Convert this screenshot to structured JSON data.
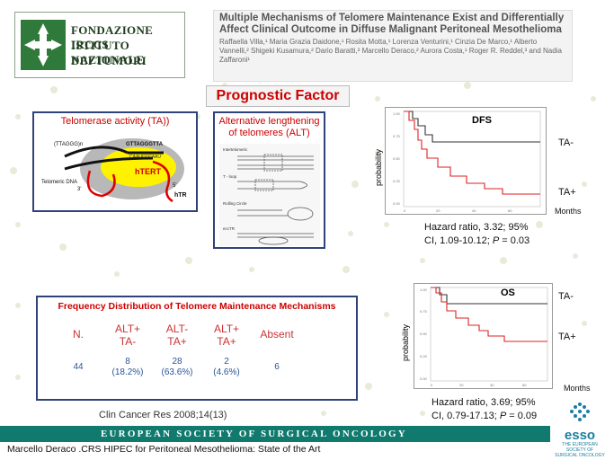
{
  "logo": {
    "line1": "FONDAZIONE IRCCS",
    "line2": "ISTITUTO NAZIONALE",
    "line3": "DEI TUMORI"
  },
  "article": {
    "title": "Multiple Mechanisms of Telomere Maintenance Exist and Differentially Affect Clinical Outcome in Diffuse Malignant Peritoneal Mesothelioma",
    "authors": "Raffaella Villa,¹ Maria Grazia Daidone,¹ Rosita Motta,¹ Lorenza Venturini,¹ Cinzia De Marco,¹ Alberto Vannelli,² Shigeki Kusamura,² Dario Baratti,² Marcello Deraco,² Aurora Costa,¹ Roger R. Reddel,³ and Nadia Zaffaroni¹"
  },
  "prognostic_label": "Prognostic Factor",
  "ta_panel": {
    "title": "Telomerase activity (TA))",
    "labels": {
      "ttaggg": "(TTAGGG)n",
      "gtt": "GTTAGGGTTA",
      "caa": "CAAUCCCAAU",
      "htert": "hTERT",
      "tel_dna": "Telomeric DNA",
      "htr": "hTR",
      "three": "3'",
      "five": "5'"
    }
  },
  "alt_panel": {
    "title": "Alternative lengthening of telomeres (ALT)",
    "steps": [
      "Intertelomeric",
      "T - loop",
      "Rolling Circle",
      "eccTR"
    ]
  },
  "dfs_graph": {
    "title": "DFS",
    "ylabel": "probability",
    "months_label": "Months",
    "ta_minus": "TA-",
    "ta_plus": "TA+",
    "hr_line1": "Hazard ratio, 3.32; 95%",
    "hr_line2": "CI, 1.09-10.12; ",
    "p_label": "P",
    "p_value": " = 0.03"
  },
  "os_graph": {
    "title": "OS",
    "ylabel": "probability",
    "months_label": "Months",
    "ta_minus": "TA-",
    "ta_plus": "TA+",
    "hr_line1": "Hazard ratio, 3.69; 95%",
    "hr_line2": "CI, 0.79-17.13; ",
    "p_label": "P",
    "p_value": " = 0.09"
  },
  "frequency": {
    "title": "Frequency Distribution of Telomere Maintenance Mechanisms",
    "headers": [
      {
        "line1": "N.",
        "line2": ""
      },
      {
        "line1": "ALT+",
        "line2": "TA-"
      },
      {
        "line1": "ALT-",
        "line2": "TA+"
      },
      {
        "line1": "ALT+",
        "line2": "TA+"
      },
      {
        "line1": "Absent",
        "line2": ""
      }
    ],
    "values": [
      {
        "line1": "44",
        "line2": ""
      },
      {
        "line1": "8",
        "line2": "(18.2%)"
      },
      {
        "line1": "28",
        "line2": "(63.6%)"
      },
      {
        "line1": "2",
        "line2": "(4.6%)"
      },
      {
        "line1": "6",
        "line2": ""
      }
    ]
  },
  "citation": "Clin Cancer Res 2008;14(13)",
  "footer_bar": "EUROPEAN SOCIETY OF SURGICAL ONCOLOGY",
  "footer_text": "Marcello Deraco .CRS HIPEC for Peritoneal Mesothelioma: State of the Art",
  "esso": {
    "word": "esso",
    "sub1": "THE EUROPEAN",
    "sub2": "SOCIETY OF",
    "sub3": "SURGICAL ONCOLOGY"
  },
  "colors": {
    "accent_red": "#cc0000",
    "panel_border": "#30427a",
    "footer_bar": "#0f7a6d",
    "esso_blue": "#1a7fa0"
  }
}
